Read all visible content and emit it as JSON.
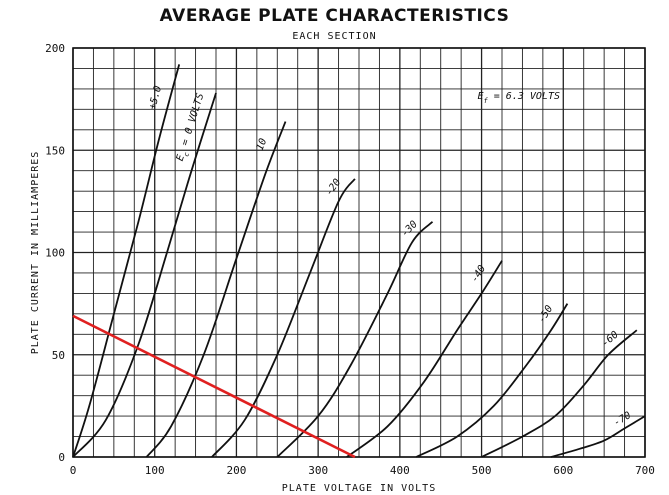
{
  "chart_data": {
    "type": "line",
    "title": "AVERAGE PLATE CHARACTERISTICS",
    "subtitle": "EACH SECTION",
    "xlabel": "PLATE VOLTAGE IN VOLTS",
    "ylabel": "PLATE CURRENT IN MILLIAMPERES",
    "xlim": [
      0,
      700
    ],
    "ylim": [
      0,
      200
    ],
    "xticks": [
      0,
      100,
      200,
      300,
      400,
      500,
      600,
      700
    ],
    "yticks": [
      0,
      50,
      100,
      150,
      200
    ],
    "grid": true,
    "annotation": "Ef = 6.3 VOLTS",
    "annotation_parts": {
      "prefix": "E",
      "sub": "f",
      "suffix": " = 6.3 VOLTS"
    },
    "series": [
      {
        "label": "+5.0",
        "color": "#111111",
        "points": [
          [
            0,
            0
          ],
          [
            20,
            25
          ],
          [
            50,
            70
          ],
          [
            80,
            115
          ],
          [
            105,
            155
          ],
          [
            130,
            192
          ]
        ]
      },
      {
        "label": "Ec = 0 VOLTS",
        "label_parts": {
          "prefix": "E",
          "sub": "c",
          "suffix": " = 0 VOLTS"
        },
        "color": "#111111",
        "points": [
          [
            0,
            0
          ],
          [
            40,
            18
          ],
          [
            80,
            55
          ],
          [
            115,
            100
          ],
          [
            145,
            140
          ],
          [
            175,
            178
          ]
        ]
      },
      {
        "label": "10",
        "color": "#111111",
        "points": [
          [
            90,
            0
          ],
          [
            120,
            15
          ],
          [
            160,
            50
          ],
          [
            200,
            97
          ],
          [
            235,
            138
          ],
          [
            260,
            164
          ]
        ]
      },
      {
        "label": "-20",
        "color": "#111111",
        "points": [
          [
            170,
            0
          ],
          [
            210,
            18
          ],
          [
            250,
            50
          ],
          [
            290,
            90
          ],
          [
            325,
            125
          ],
          [
            345,
            136
          ]
        ]
      },
      {
        "label": "-30",
        "color": "#111111",
        "points": [
          [
            250,
            0
          ],
          [
            300,
            20
          ],
          [
            340,
            45
          ],
          [
            385,
            80
          ],
          [
            415,
            105
          ],
          [
            440,
            115
          ]
        ]
      },
      {
        "label": "-40",
        "color": "#111111",
        "points": [
          [
            335,
            0
          ],
          [
            385,
            15
          ],
          [
            430,
            37
          ],
          [
            470,
            62
          ],
          [
            500,
            80
          ],
          [
            525,
            96
          ]
        ]
      },
      {
        "label": "-50",
        "color": "#111111",
        "points": [
          [
            420,
            0
          ],
          [
            470,
            10
          ],
          [
            515,
            25
          ],
          [
            555,
            45
          ],
          [
            585,
            62
          ],
          [
            605,
            75
          ]
        ]
      },
      {
        "label": "-60",
        "color": "#111111",
        "points": [
          [
            500,
            0
          ],
          [
            550,
            10
          ],
          [
            590,
            20
          ],
          [
            625,
            35
          ],
          [
            655,
            50
          ],
          [
            690,
            62
          ]
        ]
      },
      {
        "label": "-70",
        "color": "#111111",
        "points": [
          [
            585,
            0
          ],
          [
            620,
            4
          ],
          [
            650,
            8
          ],
          [
            675,
            14
          ],
          [
            700,
            20
          ]
        ]
      }
    ],
    "load_line": {
      "color": "#e02020",
      "points": [
        [
          0,
          69
        ],
        [
          345,
          0
        ]
      ]
    }
  }
}
